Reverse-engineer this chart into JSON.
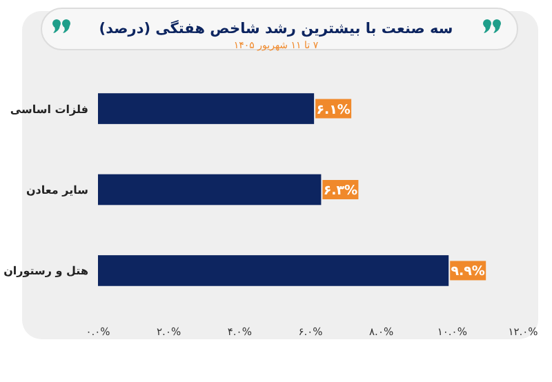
{
  "chart_data": {
    "type": "bar",
    "orientation": "horizontal",
    "title": "سه صنعت با بیشترین رشد شاخص هفتگی (درصد)",
    "subtitle": "۷ تا ۱۱ شهریور ۱۴۰۵",
    "categories": [
      "فلزات اساسی",
      "سایر معادن",
      "هتل و رستوران"
    ],
    "values": [
      6.1,
      6.3,
      9.9
    ],
    "color": "#0d2560",
    "value_labels": [
      "۶.۱%",
      "۶.۳%",
      "۹.۹%"
    ],
    "xlim": [
      0,
      12
    ],
    "xticks": [
      {
        "value": 0,
        "label": "۰.۰%"
      },
      {
        "value": 2,
        "label": "۲.۰%"
      },
      {
        "value": 4,
        "label": "۴.۰%"
      },
      {
        "value": 6,
        "label": "۶.۰%"
      },
      {
        "value": 8,
        "label": "۸.۰%"
      },
      {
        "value": 10,
        "label": "۱۰.۰%"
      },
      {
        "value": 12,
        "label": "۱۲.۰%"
      }
    ],
    "grid": false
  }
}
